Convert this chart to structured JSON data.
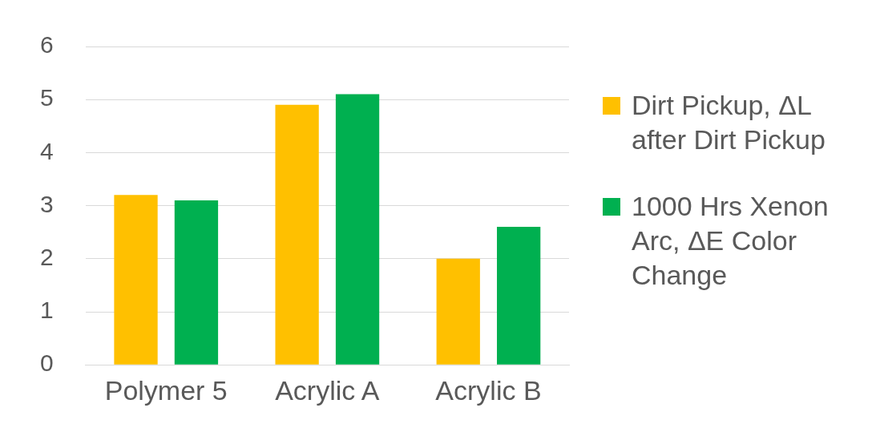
{
  "chart_data": {
    "type": "bar",
    "categories": [
      "Polymer 5",
      "Acrylic A",
      "Acrylic B"
    ],
    "series": [
      {
        "name": "Dirt Pickup, ΔL after Dirt Pickup",
        "color": "#ffc000",
        "values": [
          3.2,
          4.9,
          2.0
        ]
      },
      {
        "name": "1000 Hrs Xenon Arc, ΔE Color Change",
        "color": "#00b050",
        "values": [
          3.1,
          5.1,
          2.6
        ]
      }
    ],
    "ylim": [
      0,
      6
    ],
    "yticks": [
      0,
      1,
      2,
      3,
      4,
      5,
      6
    ],
    "grid": "y",
    "legend": "right"
  }
}
